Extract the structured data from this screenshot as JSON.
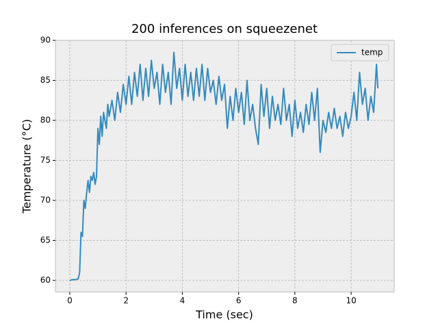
{
  "chart_data": {
    "type": "line",
    "title": "200 inferences on squeezenet",
    "x_label": "Time (sec)",
    "y_label": "Temperature (°C)",
    "x": [
      0.0,
      0.1,
      0.2,
      0.3,
      0.35,
      0.4,
      0.45,
      0.5,
      0.55,
      0.6,
      0.65,
      0.7,
      0.75,
      0.8,
      0.85,
      0.9,
      0.95,
      1.0,
      1.05,
      1.1,
      1.15,
      1.2,
      1.3,
      1.35,
      1.4,
      1.5,
      1.6,
      1.7,
      1.8,
      1.9,
      2.0,
      2.1,
      2.2,
      2.3,
      2.4,
      2.5,
      2.6,
      2.7,
      2.8,
      2.9,
      3.0,
      3.1,
      3.2,
      3.3,
      3.4,
      3.5,
      3.6,
      3.7,
      3.8,
      3.9,
      4.0,
      4.1,
      4.2,
      4.3,
      4.4,
      4.5,
      4.6,
      4.7,
      4.8,
      4.9,
      5.0,
      5.1,
      5.2,
      5.3,
      5.4,
      5.5,
      5.6,
      5.7,
      5.8,
      5.9,
      6.0,
      6.1,
      6.2,
      6.3,
      6.4,
      6.5,
      6.6,
      6.7,
      6.8,
      6.9,
      7.0,
      7.1,
      7.2,
      7.3,
      7.4,
      7.5,
      7.6,
      7.7,
      7.8,
      7.9,
      8.0,
      8.1,
      8.2,
      8.3,
      8.4,
      8.5,
      8.6,
      8.7,
      8.8,
      8.9,
      9.0,
      9.1,
      9.2,
      9.3,
      9.4,
      9.5,
      9.6,
      9.7,
      9.8,
      9.9,
      10.0,
      10.1,
      10.2,
      10.3,
      10.4,
      10.5,
      10.6,
      10.7,
      10.8,
      10.9,
      10.95
    ],
    "series": [
      {
        "name": "temp",
        "color": "#348abd",
        "values": [
          60,
          60.1,
          60.1,
          60.2,
          61,
          66,
          65.5,
          70,
          69,
          71,
          72.5,
          71,
          73,
          72.5,
          73.5,
          72,
          73,
          79,
          77,
          80.5,
          78,
          81,
          79,
          82,
          80.5,
          82.5,
          80,
          83.5,
          81,
          84.5,
          82,
          85.5,
          82,
          86,
          83,
          87,
          82.5,
          86.5,
          83,
          87.5,
          84,
          86,
          82,
          87,
          83.5,
          86,
          82,
          88.5,
          84,
          86.5,
          82.5,
          87,
          83,
          86,
          82.5,
          86.5,
          83,
          87,
          82.5,
          86.5,
          83.5,
          85,
          82,
          85.5,
          82.5,
          84.5,
          79,
          83,
          80,
          84,
          81,
          83.5,
          79.5,
          85,
          80,
          82,
          79,
          77,
          84.5,
          80.5,
          84,
          79,
          83,
          80,
          82,
          79.5,
          84,
          80,
          82,
          78,
          82.5,
          79,
          81,
          78.5,
          82,
          79.5,
          83.5,
          80,
          84,
          76,
          80,
          78.5,
          81,
          79,
          81.5,
          79,
          80.5,
          78,
          81,
          79,
          80.5,
          83.5,
          80,
          86,
          82,
          84,
          80,
          83,
          81,
          87,
          84
        ]
      }
    ],
    "xlim": [
      -0.51,
      11.53
    ],
    "ylim": [
      58.55,
      90
    ],
    "xticks": [
      0,
      2,
      4,
      6,
      8,
      10
    ],
    "yticks": [
      60,
      65,
      70,
      75,
      80,
      85,
      90
    ],
    "grid": true,
    "legend": "upper right"
  }
}
